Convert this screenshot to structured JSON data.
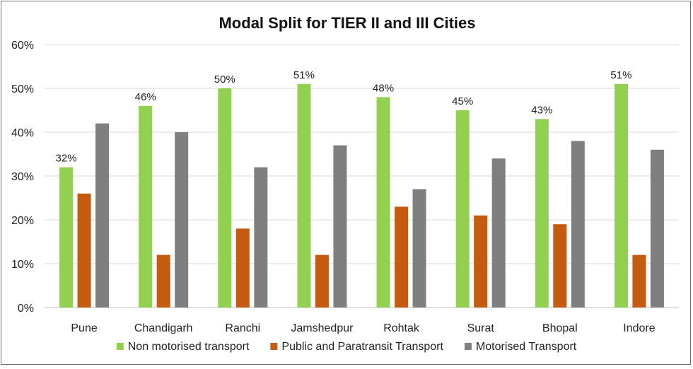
{
  "chart_data": {
    "type": "bar",
    "title": "Modal Split for TIER II and III Cities",
    "xlabel": "",
    "ylabel": "",
    "ylim": [
      0,
      60
    ],
    "yticks": [
      "0%",
      "10%",
      "20%",
      "30%",
      "40%",
      "50%",
      "60%"
    ],
    "ytick_values": [
      0,
      10,
      20,
      30,
      40,
      50,
      60
    ],
    "grid": true,
    "legend_position": "bottom",
    "categories": [
      "Pune",
      "Chandigarh",
      "Ranchi",
      "Jamshedpur",
      "Rohtak",
      "Surat",
      "Bhopal",
      "Indore"
    ],
    "series": [
      {
        "name": "Non motorised transport",
        "color": "#92d050",
        "values": [
          32,
          46,
          50,
          51,
          48,
          45,
          43,
          51
        ],
        "labels": [
          "32%",
          "46%",
          "50%",
          "51%",
          "48%",
          "45%",
          "43%",
          "51%"
        ]
      },
      {
        "name": "Public and Paratransit Transport",
        "color": "#c55a11",
        "values": [
          26,
          12,
          18,
          12,
          23,
          21,
          19,
          12
        ]
      },
      {
        "name": "Motorised Transport",
        "color": "#7f7f7f",
        "values": [
          42,
          40,
          32,
          37,
          27,
          34,
          38,
          36
        ]
      }
    ]
  }
}
